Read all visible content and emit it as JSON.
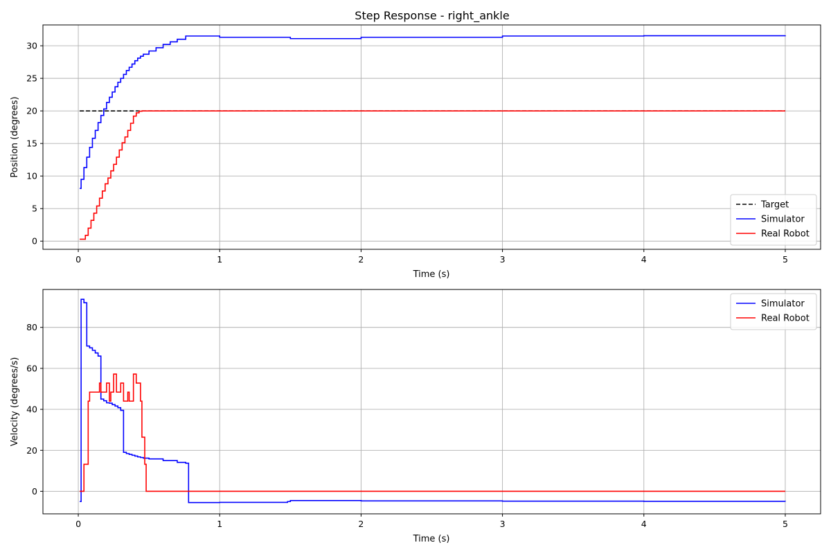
{
  "chart_data": [
    {
      "type": "line",
      "title": "Step Response - right_ankle",
      "xlabel": "Time (s)",
      "ylabel": "Position (degrees)",
      "xlim": [
        -0.25,
        5.25
      ],
      "ylim": [
        -1.25,
        33.2
      ],
      "xticks": [
        0,
        1,
        2,
        3,
        4,
        5
      ],
      "yticks": [
        0,
        5,
        10,
        15,
        20,
        25,
        30
      ],
      "grid": true,
      "legend_position": "lower-right",
      "series": [
        {
          "name": "Target",
          "color": "#000000",
          "dash": "dashed",
          "x": [
            0.01,
            5.0
          ],
          "y": [
            20,
            20
          ]
        },
        {
          "name": "Simulator",
          "color": "#0000ff",
          "dash": "solid",
          "step": true,
          "x": [
            0.01,
            0.02,
            0.04,
            0.06,
            0.08,
            0.1,
            0.12,
            0.14,
            0.16,
            0.18,
            0.2,
            0.22,
            0.24,
            0.26,
            0.28,
            0.3,
            0.32,
            0.34,
            0.36,
            0.38,
            0.4,
            0.42,
            0.44,
            0.46,
            0.5,
            0.55,
            0.6,
            0.65,
            0.7,
            0.76,
            1.0,
            1.5,
            2.0,
            3.0,
            4.0,
            5.0
          ],
          "y": [
            8.1,
            9.5,
            11.3,
            12.9,
            14.4,
            15.8,
            17.0,
            18.2,
            19.3,
            20.3,
            21.3,
            22.1,
            22.9,
            23.7,
            24.4,
            25.0,
            25.6,
            26.2,
            26.7,
            27.2,
            27.7,
            28.1,
            28.4,
            28.7,
            29.2,
            29.7,
            30.2,
            30.6,
            31.0,
            31.5,
            31.3,
            31.1,
            31.3,
            31.5,
            31.55,
            31.6
          ]
        },
        {
          "name": "Real Robot",
          "color": "#ff0000",
          "dash": "solid",
          "step": true,
          "x": [
            0.01,
            0.03,
            0.05,
            0.07,
            0.09,
            0.11,
            0.13,
            0.15,
            0.17,
            0.19,
            0.21,
            0.23,
            0.25,
            0.27,
            0.29,
            0.31,
            0.33,
            0.35,
            0.37,
            0.39,
            0.41,
            0.43,
            0.45,
            0.47,
            0.5,
            1.0,
            2.0,
            3.0,
            4.0,
            5.0
          ],
          "y": [
            0.3,
            0.3,
            0.9,
            2.0,
            3.2,
            4.3,
            5.4,
            6.6,
            7.7,
            8.8,
            9.7,
            10.8,
            11.8,
            12.9,
            14.0,
            15.1,
            16.0,
            17.0,
            18.1,
            19.2,
            19.7,
            19.95,
            20.0,
            20.0,
            20.0,
            20.0,
            20.0,
            20.0,
            20.0,
            20.0
          ]
        }
      ]
    },
    {
      "type": "line",
      "title": "",
      "xlabel": "Time (s)",
      "ylabel": "Velocity (degrees/s)",
      "xlim": [
        -0.25,
        5.25
      ],
      "ylim": [
        -11,
        98.5
      ],
      "xticks": [
        0,
        1,
        2,
        3,
        4,
        5
      ],
      "yticks": [
        0,
        20,
        40,
        60,
        80
      ],
      "grid": true,
      "legend_position": "upper-right",
      "series": [
        {
          "name": "Simulator",
          "color": "#0000ff",
          "dash": "solid",
          "step": true,
          "x": [
            0.01,
            0.02,
            0.04,
            0.06,
            0.08,
            0.1,
            0.12,
            0.14,
            0.16,
            0.18,
            0.2,
            0.22,
            0.24,
            0.26,
            0.28,
            0.3,
            0.32,
            0.34,
            0.36,
            0.38,
            0.4,
            0.42,
            0.44,
            0.46,
            0.5,
            0.6,
            0.7,
            0.76,
            0.78,
            1.0,
            1.48,
            1.5,
            2.0,
            3.0,
            4.0,
            5.0
          ],
          "y": [
            -5.0,
            93.7,
            92.0,
            70.9,
            70.0,
            68.8,
            67.5,
            66.0,
            45.0,
            44.2,
            43.2,
            43.0,
            42.3,
            41.6,
            40.8,
            39.5,
            19.0,
            18.4,
            18.0,
            17.6,
            17.2,
            16.8,
            16.5,
            16.2,
            15.8,
            15.0,
            14.1,
            13.7,
            -5.5,
            -5.4,
            -5.0,
            -4.5,
            -4.7,
            -4.8,
            -4.9,
            -5.0
          ]
        },
        {
          "name": "Real Robot",
          "color": "#ff0000",
          "dash": "solid",
          "step": true,
          "x": [
            0.01,
            0.04,
            0.07,
            0.08,
            0.1,
            0.12,
            0.15,
            0.16,
            0.18,
            0.2,
            0.22,
            0.23,
            0.25,
            0.27,
            0.3,
            0.32,
            0.33,
            0.35,
            0.36,
            0.37,
            0.39,
            0.41,
            0.44,
            0.45,
            0.47,
            0.48,
            0.49,
            1.0,
            2.0,
            3.0,
            4.0,
            5.0
          ],
          "y": [
            0.0,
            13.2,
            44.0,
            48.4,
            48.4,
            48.4,
            52.8,
            48.4,
            48.4,
            52.8,
            44.0,
            48.4,
            57.2,
            48.4,
            52.8,
            44.0,
            44.0,
            48.4,
            44.0,
            44.0,
            57.2,
            52.8,
            44.0,
            26.4,
            13.2,
            0.0,
            0.0,
            0.0,
            0.0,
            0.0,
            0.0,
            0.0
          ]
        }
      ]
    }
  ]
}
